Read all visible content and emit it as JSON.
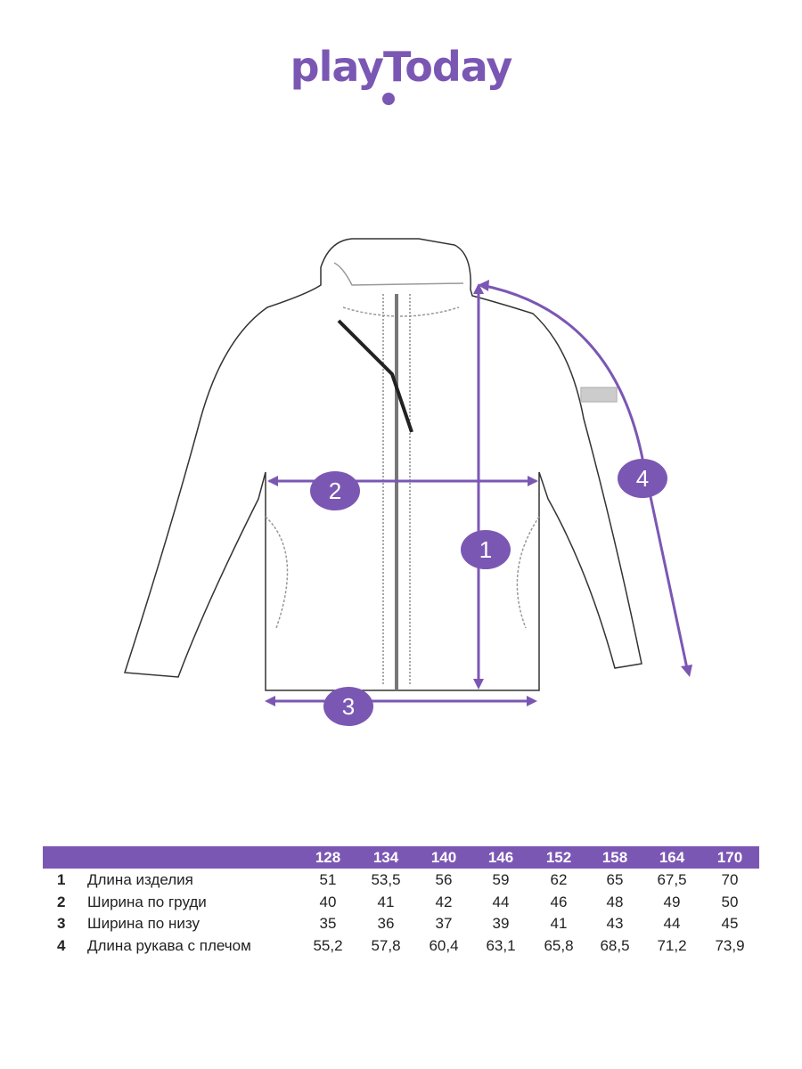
{
  "brand": {
    "logo_text": "playToday",
    "color": "#7b57b4"
  },
  "markers": [
    "1",
    "2",
    "3",
    "4"
  ],
  "table": {
    "sizes": [
      "128",
      "134",
      "140",
      "146",
      "152",
      "158",
      "164",
      "170"
    ],
    "rows": [
      {
        "num": "1",
        "label": "Длина изделия",
        "values": [
          "51",
          "53,5",
          "56",
          "59",
          "62",
          "65",
          "67,5",
          "70"
        ]
      },
      {
        "num": "2",
        "label": "Ширина по груди",
        "values": [
          "40",
          "41",
          "42",
          "44",
          "46",
          "48",
          "49",
          "50"
        ]
      },
      {
        "num": "3",
        "label": "Ширина по низу",
        "values": [
          "35",
          "36",
          "37",
          "39",
          "41",
          "43",
          "44",
          "45"
        ]
      },
      {
        "num": "4",
        "label": "Длина рукава с плечом",
        "values": [
          "55,2",
          "57,8",
          "60,4",
          "63,1",
          "65,8",
          "68,5",
          "71,2",
          "73,9"
        ]
      }
    ]
  }
}
